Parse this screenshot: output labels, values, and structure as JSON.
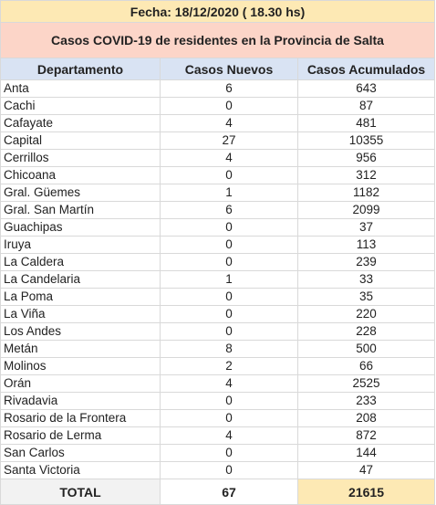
{
  "header": {
    "date_line": "Fecha: 18/12/2020 ( 18.30 hs)",
    "title": "Casos COVID-19 de residentes en la Provincia de Salta"
  },
  "columns": [
    "Departamento",
    "Casos Nuevos",
    "Casos Acumulados"
  ],
  "rows": [
    {
      "dept": "Anta",
      "nuevos": "6",
      "acumulados": "643"
    },
    {
      "dept": "Cachi",
      "nuevos": "0",
      "acumulados": "87"
    },
    {
      "dept": "Cafayate",
      "nuevos": "4",
      "acumulados": "481"
    },
    {
      "dept": "Capital",
      "nuevos": "27",
      "acumulados": "10355"
    },
    {
      "dept": "Cerrillos",
      "nuevos": "4",
      "acumulados": "956"
    },
    {
      "dept": "Chicoana",
      "nuevos": "0",
      "acumulados": "312"
    },
    {
      "dept": "Gral. Güemes",
      "nuevos": "1",
      "acumulados": "1182"
    },
    {
      "dept": "Gral. San Martín",
      "nuevos": "6",
      "acumulados": "2099"
    },
    {
      "dept": "Guachipas",
      "nuevos": "0",
      "acumulados": "37"
    },
    {
      "dept": "Iruya",
      "nuevos": "0",
      "acumulados": "113"
    },
    {
      "dept": "La Caldera",
      "nuevos": "0",
      "acumulados": "239"
    },
    {
      "dept": "La Candelaria",
      "nuevos": "1",
      "acumulados": "33"
    },
    {
      "dept": "La Poma",
      "nuevos": "0",
      "acumulados": "35"
    },
    {
      "dept": "La Viña",
      "nuevos": "0",
      "acumulados": "220"
    },
    {
      "dept": "Los Andes",
      "nuevos": "0",
      "acumulados": "228"
    },
    {
      "dept": "Metán",
      "nuevos": "8",
      "acumulados": "500"
    },
    {
      "dept": "Molinos",
      "nuevos": "2",
      "acumulados": "66"
    },
    {
      "dept": "Orán",
      "nuevos": "4",
      "acumulados": "2525"
    },
    {
      "dept": "Rivadavia",
      "nuevos": "0",
      "acumulados": "233"
    },
    {
      "dept": "Rosario de la Frontera",
      "nuevos": "0",
      "acumulados": "208"
    },
    {
      "dept": "Rosario de Lerma",
      "nuevos": "4",
      "acumulados": "872"
    },
    {
      "dept": "San Carlos",
      "nuevos": "0",
      "acumulados": "144"
    },
    {
      "dept": "Santa Victoria",
      "nuevos": "0",
      "acumulados": "47"
    }
  ],
  "total": {
    "label": "TOTAL",
    "nuevos": "67",
    "acumulados": "21615"
  },
  "colors": {
    "date_bg": "#fde9b4",
    "title_bg": "#fcd5c8",
    "header_bg": "#d9e3f3",
    "total_label_bg": "#f2f2f2",
    "total_acum_bg": "#fde9b4"
  }
}
